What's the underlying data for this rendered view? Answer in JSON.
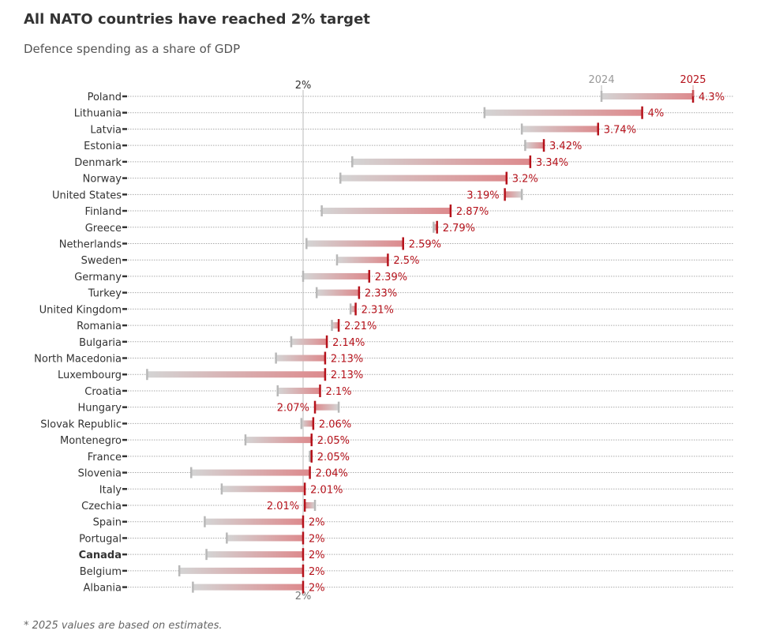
{
  "title": "All NATO countries have reached 2% target",
  "subtitle": "Defence spending as a share of GDP",
  "footnote": "* 2025 values are based on estimates.",
  "chart_data": {
    "type": "dumbbell",
    "reference_line": {
      "value": 2,
      "label": "2%"
    },
    "series": [
      {
        "name": "2024",
        "color": "#b8b8b8"
      },
      {
        "name": "2025",
        "color": "#b5121b"
      }
    ],
    "highlight": "Canada",
    "grid": true,
    "rows": [
      {
        "country": "Poland",
        "v2024": 3.76,
        "v2025": 4.3,
        "label": "4.3%"
      },
      {
        "country": "Lithuania",
        "v2024": 3.07,
        "v2025": 4.0,
        "label": "4%"
      },
      {
        "country": "Latvia",
        "v2024": 3.29,
        "v2025": 3.74,
        "label": "3.74%"
      },
      {
        "country": "Estonia",
        "v2024": 3.31,
        "v2025": 3.42,
        "label": "3.42%"
      },
      {
        "country": "Denmark",
        "v2024": 2.29,
        "v2025": 3.34,
        "label": "3.34%"
      },
      {
        "country": "Norway",
        "v2024": 2.22,
        "v2025": 3.2,
        "label": "3.2%"
      },
      {
        "country": "United States",
        "v2024": 3.29,
        "v2025": 3.19,
        "label": "3.19%"
      },
      {
        "country": "Finland",
        "v2024": 2.11,
        "v2025": 2.87,
        "label": "2.87%"
      },
      {
        "country": "Greece",
        "v2024": 2.77,
        "v2025": 2.79,
        "label": "2.79%"
      },
      {
        "country": "Netherlands",
        "v2024": 2.02,
        "v2025": 2.59,
        "label": "2.59%"
      },
      {
        "country": "Sweden",
        "v2024": 2.2,
        "v2025": 2.5,
        "label": "2.5%"
      },
      {
        "country": "Germany",
        "v2024": 2.0,
        "v2025": 2.39,
        "label": "2.39%"
      },
      {
        "country": "Turkey",
        "v2024": 2.08,
        "v2025": 2.33,
        "label": "2.33%"
      },
      {
        "country": "United Kingdom",
        "v2024": 2.28,
        "v2025": 2.31,
        "label": "2.31%"
      },
      {
        "country": "Romania",
        "v2024": 2.17,
        "v2025": 2.21,
        "label": "2.21%"
      },
      {
        "country": "Bulgaria",
        "v2024": 1.93,
        "v2025": 2.14,
        "label": "2.14%"
      },
      {
        "country": "North Macedonia",
        "v2024": 1.84,
        "v2025": 2.13,
        "label": "2.13%"
      },
      {
        "country": "Luxembourg",
        "v2024": 1.08,
        "v2025": 2.13,
        "label": "2.13%"
      },
      {
        "country": "Croatia",
        "v2024": 1.85,
        "v2025": 2.1,
        "label": "2.1%"
      },
      {
        "country": "Hungary",
        "v2024": 2.21,
        "v2025": 2.07,
        "label": "2.07%"
      },
      {
        "country": "Slovak Republic",
        "v2024": 1.99,
        "v2025": 2.06,
        "label": "2.06%"
      },
      {
        "country": "Montenegro",
        "v2024": 1.66,
        "v2025": 2.05,
        "label": "2.05%"
      },
      {
        "country": "France",
        "v2024": 2.04,
        "v2025": 2.05,
        "label": "2.05%"
      },
      {
        "country": "Slovenia",
        "v2024": 1.34,
        "v2025": 2.04,
        "label": "2.04%"
      },
      {
        "country": "Italy",
        "v2024": 1.52,
        "v2025": 2.01,
        "label": "2.01%"
      },
      {
        "country": "Czechia",
        "v2024": 2.07,
        "v2025": 2.01,
        "label": "2.01%"
      },
      {
        "country": "Spain",
        "v2024": 1.42,
        "v2025": 2.0,
        "label": "2%"
      },
      {
        "country": "Portugal",
        "v2024": 1.55,
        "v2025": 2.0,
        "label": "2%"
      },
      {
        "country": "Canada",
        "v2024": 1.43,
        "v2025": 2.0,
        "label": "2%"
      },
      {
        "country": "Belgium",
        "v2024": 1.27,
        "v2025": 2.0,
        "label": "2%"
      },
      {
        "country": "Albania",
        "v2024": 1.35,
        "v2025": 2.0,
        "label": "2%"
      }
    ]
  }
}
